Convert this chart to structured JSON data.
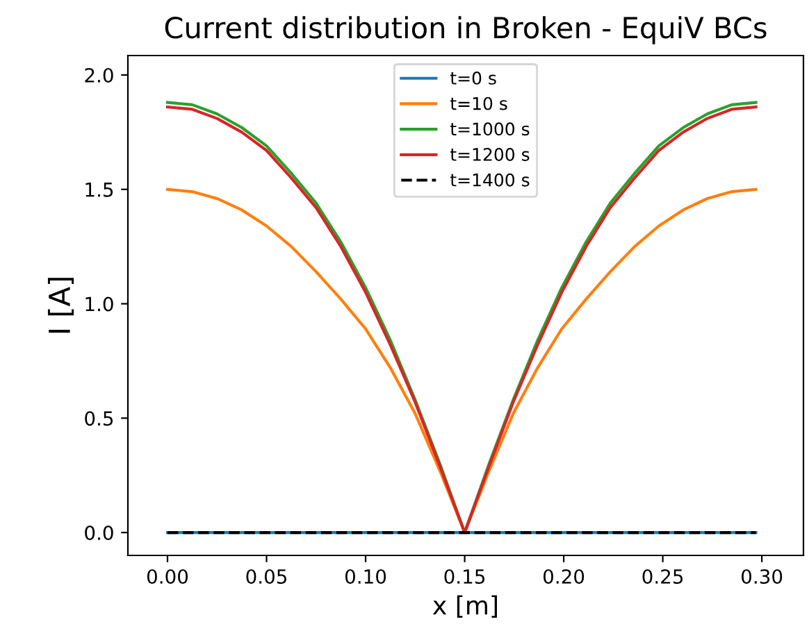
{
  "chart_data": {
    "type": "line",
    "title": "Current distribution in Broken - EquiV BCs",
    "xlabel": "x [m]",
    "ylabel": "I [A]",
    "x": [
      0,
      0.0125,
      0.025,
      0.0375,
      0.05,
      0.0625,
      0.075,
      0.0875,
      0.1,
      0.1125,
      0.125,
      0.1375,
      0.15,
      0.1623,
      0.1745,
      0.1868,
      0.199,
      0.2113,
      0.2235,
      0.2358,
      0.248,
      0.2603,
      0.2725,
      0.2848,
      0.297
    ],
    "series": [
      {
        "name": "t=0 s",
        "color": "#1f77b4",
        "values": [
          0,
          0,
          0,
          0,
          0,
          0,
          0,
          0,
          0,
          0,
          0,
          0,
          0,
          0,
          0,
          0,
          0,
          0,
          0,
          0,
          0,
          0,
          0,
          0,
          0
        ]
      },
      {
        "name": "t=10 s",
        "color": "#ff7f0e",
        "values": [
          1.5,
          1.49,
          1.46,
          1.41,
          1.34,
          1.25,
          1.14,
          1.02,
          0.89,
          0.72,
          0.52,
          0.27,
          0,
          0.27,
          0.52,
          0.72,
          0.89,
          1.02,
          1.14,
          1.25,
          1.34,
          1.41,
          1.46,
          1.49,
          1.5
        ]
      },
      {
        "name": "t=1000 s",
        "color": "#2ca02c",
        "values": [
          1.88,
          1.87,
          1.83,
          1.77,
          1.69,
          1.57,
          1.44,
          1.27,
          1.07,
          0.84,
          0.58,
          0.3,
          0,
          0.3,
          0.58,
          0.84,
          1.07,
          1.27,
          1.44,
          1.57,
          1.69,
          1.77,
          1.83,
          1.87,
          1.88
        ]
      },
      {
        "name": "t=1200 s",
        "color": "#d62728",
        "values": [
          1.86,
          1.85,
          1.81,
          1.75,
          1.67,
          1.55,
          1.42,
          1.25,
          1.05,
          0.82,
          0.57,
          0.29,
          0,
          0.29,
          0.57,
          0.82,
          1.05,
          1.25,
          1.42,
          1.55,
          1.67,
          1.75,
          1.81,
          1.85,
          1.86
        ]
      },
      {
        "name": "t=1400 s",
        "color": "#000000",
        "line_style": "dashed",
        "values": [
          0,
          0,
          0,
          0,
          0,
          0,
          0,
          0,
          0,
          0,
          0,
          0,
          0,
          0,
          0,
          0,
          0,
          0,
          0,
          0,
          0,
          0,
          0,
          0,
          0
        ]
      }
    ],
    "xlim": [
      -0.02,
      0.321
    ],
    "ylim": [
      -0.1,
      2.085
    ],
    "xticks": [
      {
        "value": 0,
        "label": "0.00"
      },
      0.05,
      {
        "value": 0.1,
        "label": "0.10"
      },
      0.15,
      {
        "value": 0.2,
        "label": "0.20"
      },
      0.25,
      {
        "value": 0.3,
        "label": "0.30"
      }
    ],
    "yticks": [
      {
        "value": 0,
        "label": "0.0"
      },
      0.5,
      {
        "value": 1,
        "label": "1.0"
      },
      1.5,
      {
        "value": 2,
        "label": "2.0"
      }
    ],
    "legend": "top",
    "grid": false
  }
}
